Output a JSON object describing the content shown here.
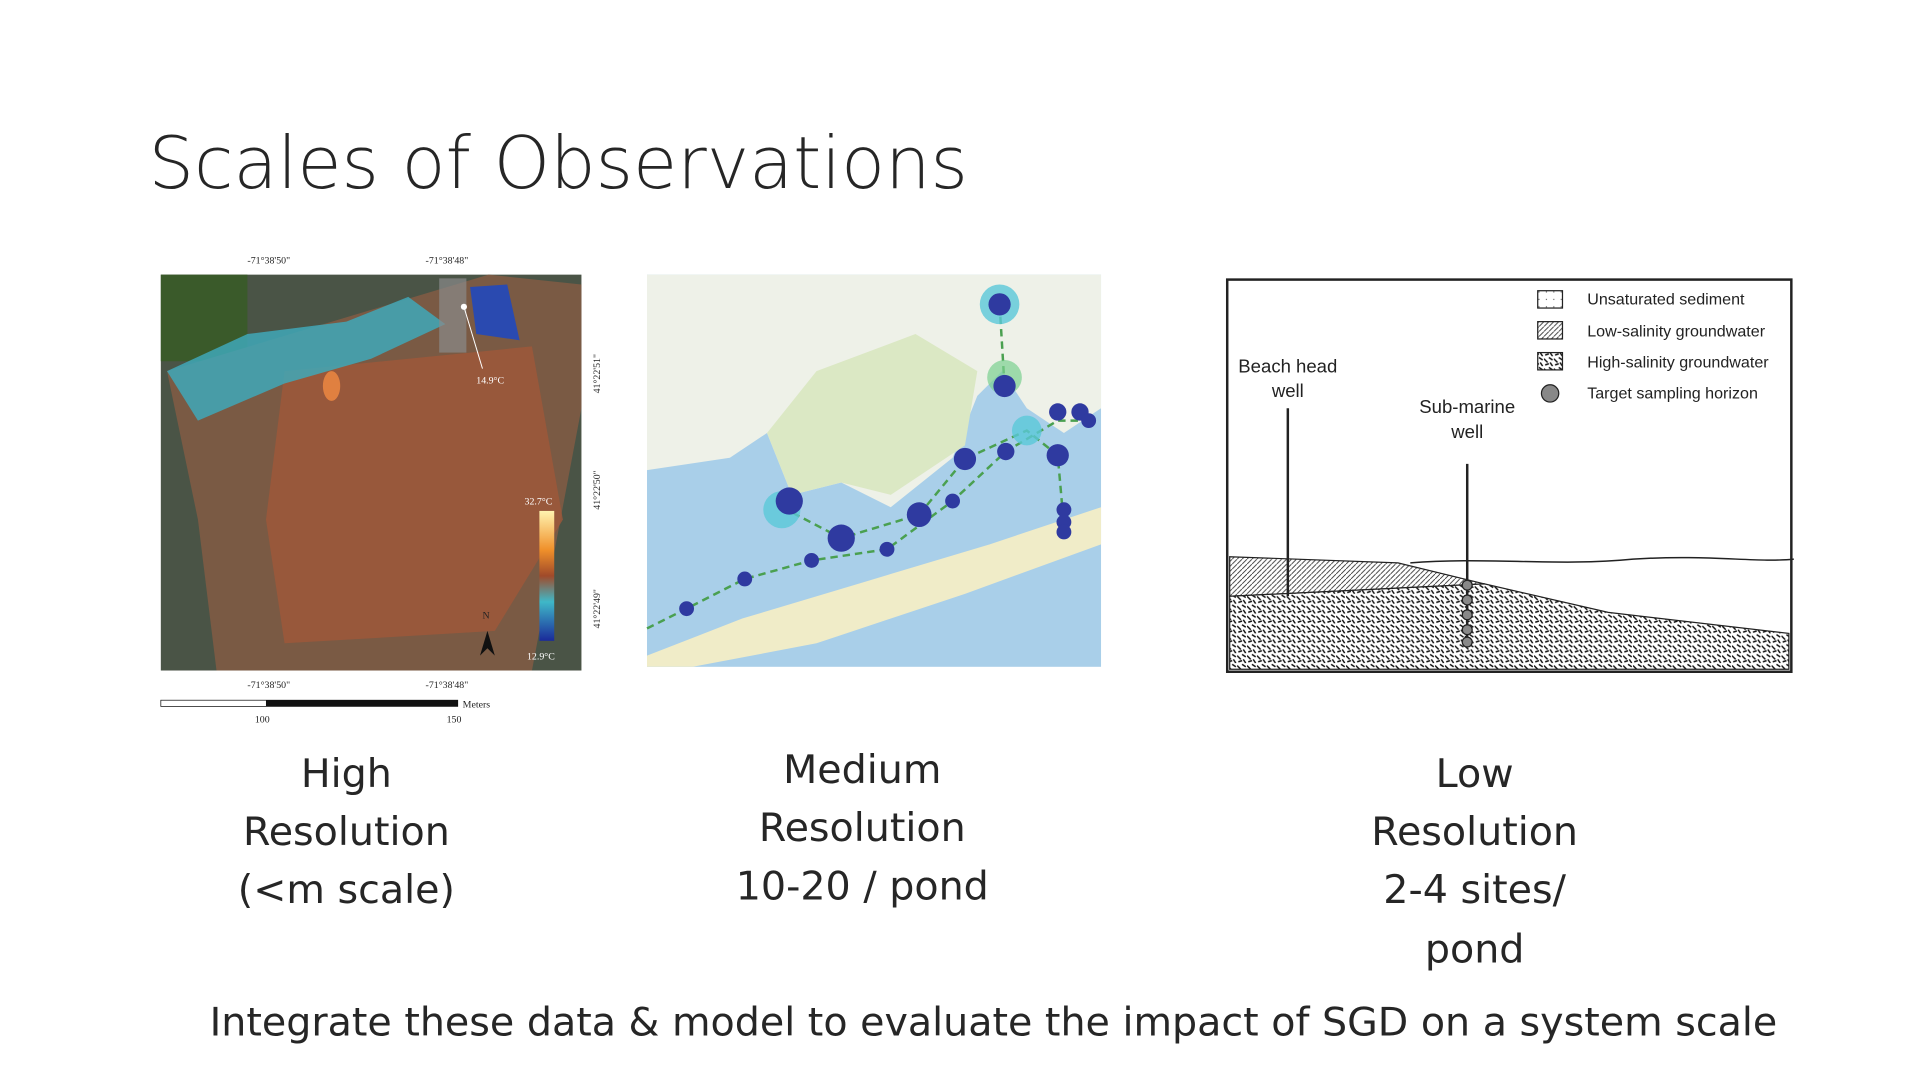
{
  "title": "Scales of Observations",
  "panels": [
    {
      "figure": {
        "top_labels": [
          "-71°38'50\"",
          "-71°38'48\""
        ],
        "bottom_labels": [
          "-71°38'50\"",
          "-71°38'48\""
        ],
        "side_labels": [
          "41°22'51\"",
          "41°22'50\"",
          "41°22'49\""
        ],
        "point_label": "14.9°C",
        "colorbar_max": "32.7°C",
        "colorbar_min": "12.9°C",
        "north": "N",
        "scale_unit": "Meters",
        "scale_ticks": [
          "100",
          "150"
        ]
      },
      "caption": [
        "High",
        "Resolution",
        "(<m scale)"
      ]
    },
    {
      "caption": [
        "Medium",
        "Resolution",
        "10-20 / pond"
      ]
    },
    {
      "figure": {
        "legend": [
          "Unsaturated sediment",
          "Low-salinity groundwater",
          "High-salinity groundwater",
          "Target sampling horizon"
        ],
        "wells": [
          [
            "Beach head",
            "well"
          ],
          [
            "Sub-marine",
            "well"
          ]
        ]
      },
      "caption": [
        "Low",
        "Resolution",
        "2-4 sites/",
        "pond"
      ]
    }
  ],
  "footer": "Integrate these data & model to evaluate the impact of SGD on a system scale"
}
